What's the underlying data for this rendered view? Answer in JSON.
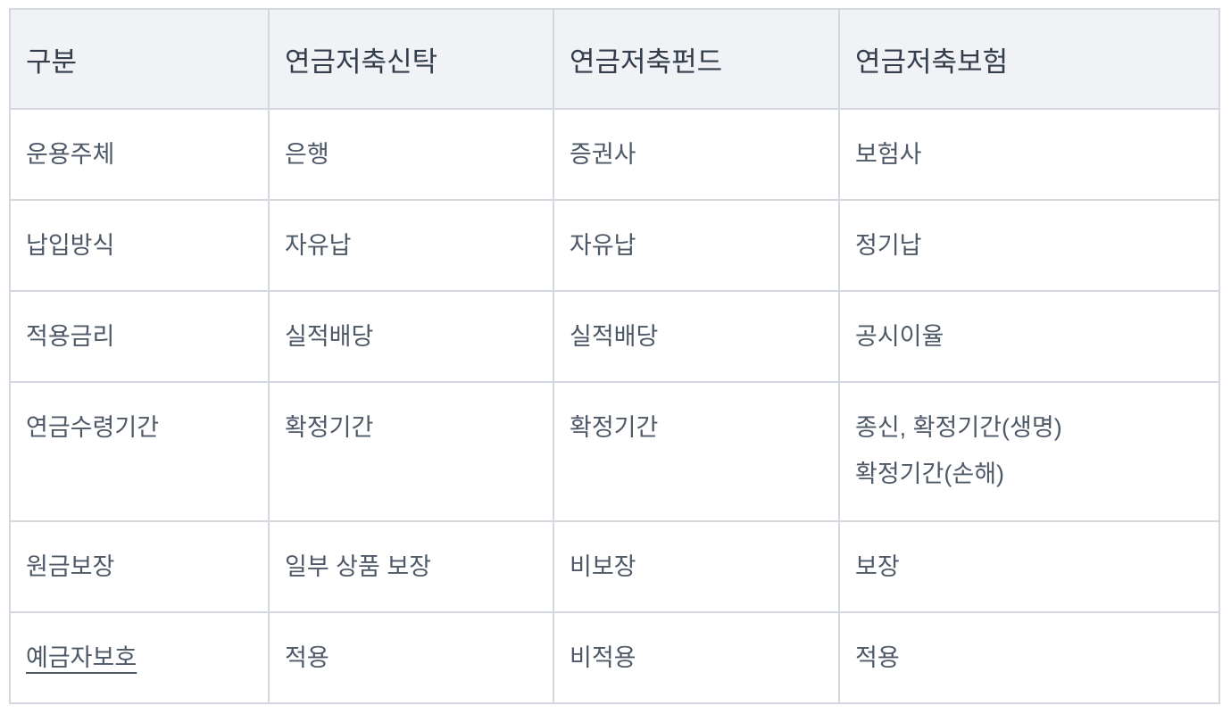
{
  "table": {
    "headers": [
      "구분",
      "연금저축신탁",
      "연금저축펀드",
      "연금저축보험"
    ],
    "rows": [
      [
        "운용주체",
        "은행",
        "증권사",
        "보험사"
      ],
      [
        "납입방식",
        "자유납",
        "자유납",
        "정기납"
      ],
      [
        "적용금리",
        "실적배당",
        "실적배당",
        "공시이율"
      ],
      [
        "연금수령기간",
        "확정기간",
        "확정기간",
        [
          "종신, 확정기간(생명)",
          "확정기간(손해)"
        ]
      ],
      [
        "원금보장",
        "일부 상품 보장",
        "비보장",
        "보장"
      ],
      [
        "예금자보호",
        "적용",
        "비적용",
        "적용"
      ]
    ]
  }
}
